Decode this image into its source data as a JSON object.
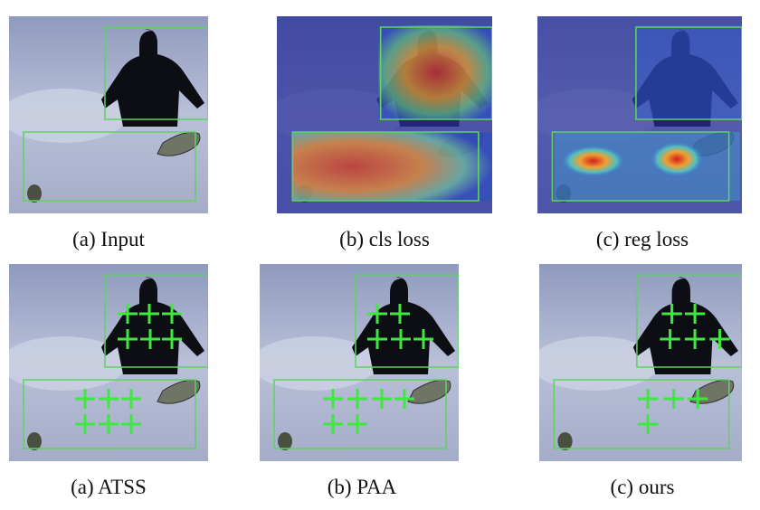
{
  "figure": {
    "top_row": [
      {
        "caption": "(a) Input",
        "kind": "input"
      },
      {
        "caption": "(b) cls loss",
        "kind": "cls-heatmap"
      },
      {
        "caption": "(c) reg loss",
        "kind": "reg-heatmap"
      }
    ],
    "bottom_row": [
      {
        "caption": "(a) ATSS",
        "kind": "points"
      },
      {
        "caption": "(b) PAA",
        "kind": "points"
      },
      {
        "caption": "(c) ours",
        "kind": "points"
      }
    ],
    "colors": {
      "box": "#5fd35f",
      "cross": "#3ee83e",
      "snow": "#aeb6d2",
      "heat_bg": "#28309a"
    }
  }
}
